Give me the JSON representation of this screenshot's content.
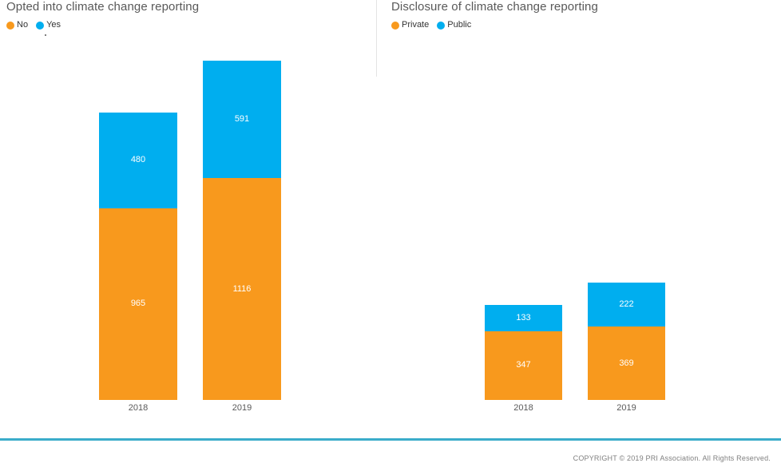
{
  "chart_data": [
    {
      "type": "bar",
      "stacked": true,
      "title": "Opted into climate change reporting",
      "categories": [
        "2018",
        "2019"
      ],
      "series": [
        {
          "name": "No",
          "color": "#F8991D",
          "values": [
            965,
            1116
          ]
        },
        {
          "name": "Yes",
          "color": "#00AEEF",
          "values": [
            480,
            591
          ]
        }
      ],
      "legend_position": "top-left",
      "value_labels": "inside-white",
      "xlabel": "",
      "ylabel": "",
      "grid": false,
      "axis_lines": false
    },
    {
      "type": "bar",
      "stacked": true,
      "title": "Disclosure of climate change reporting",
      "categories": [
        "2018",
        "2019"
      ],
      "series": [
        {
          "name": "Private",
          "color": "#F8991D",
          "values": [
            347,
            369
          ]
        },
        {
          "name": "Public",
          "color": "#00AEEF",
          "values": [
            133,
            222
          ]
        }
      ],
      "legend_position": "top-left",
      "value_labels": "inside-white",
      "xlabel": "",
      "ylabel": "",
      "grid": false,
      "axis_lines": false
    }
  ],
  "colors": {
    "orange": "#F8991D",
    "blue": "#00AEEF",
    "teal_rule": "#3AACCA",
    "title_gray": "#595959",
    "axis_gray": "#595959",
    "copyright_gray": "#808080"
  },
  "footer": {
    "copyright": "COPYRIGHT © 2019 PRI Association. All Rights Reserved."
  }
}
